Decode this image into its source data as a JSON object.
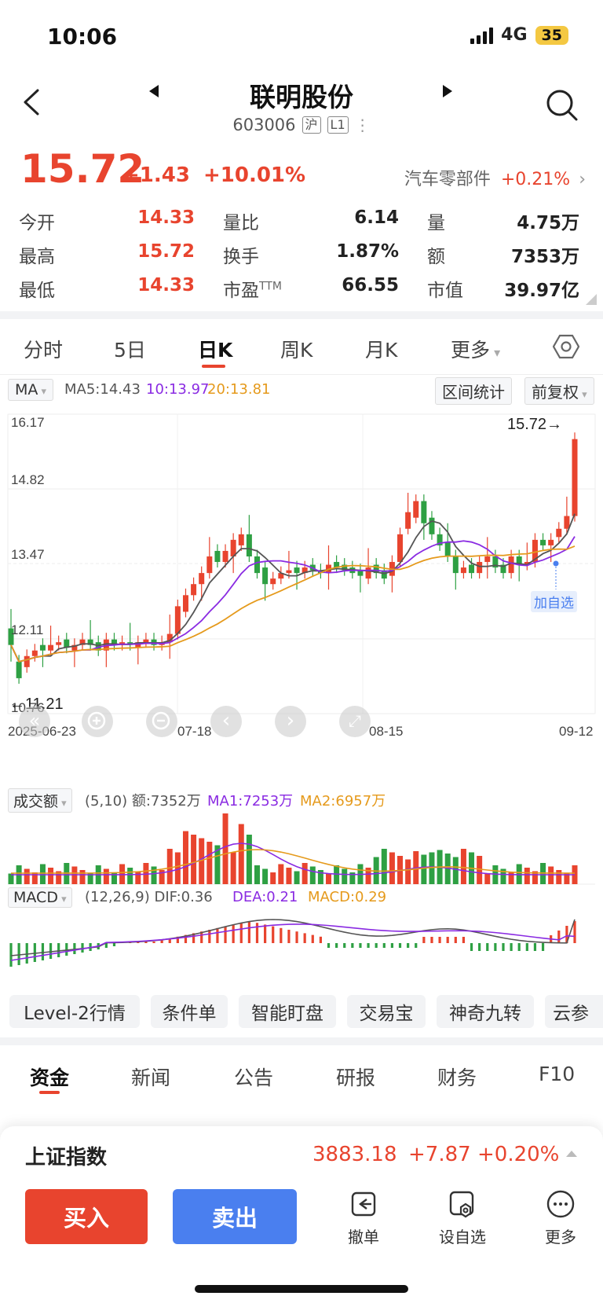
{
  "status": {
    "time": "10:06",
    "network": "4G",
    "battery": "35"
  },
  "header": {
    "title": "联明股份",
    "code": "603006",
    "market_tag": "沪",
    "level_tag": "L1"
  },
  "quote": {
    "price": "15.72",
    "change": "+1.43",
    "change_pct": "+10.01%",
    "sector_name": "汽车零部件",
    "sector_change": "+0.21%",
    "stats": [
      [
        {
          "label": "今开",
          "value": "14.33"
        },
        {
          "label": "量比",
          "value": "6.14"
        },
        {
          "label": "量",
          "value": "4.75万"
        }
      ],
      [
        {
          "label": "最高",
          "value": "15.72"
        },
        {
          "label": "换手",
          "value": "1.87%"
        },
        {
          "label": "额",
          "value": "7353万"
        }
      ],
      [
        {
          "label": "最低",
          "value": "14.33"
        },
        {
          "label": "市盈",
          "sup": "TTM",
          "value": "66.55"
        },
        {
          "label": "市值",
          "value": "39.97亿"
        }
      ]
    ]
  },
  "ktabs": [
    "分时",
    "5日",
    "日K",
    "周K",
    "月K",
    "更多"
  ],
  "chart": {
    "ma_label": "MA",
    "ma5": "MA5:14.43",
    "ma10": "10:13.97",
    "ma20": "20:13.81",
    "range_button": "区间统计",
    "adjust_button": "前复权",
    "y_ticks": [
      "16.17",
      "14.82",
      "13.47",
      "12.11",
      "10.76"
    ],
    "high_label": "15.72→",
    "low_label": "←11.21",
    "add_watch": "加自选",
    "x_ticks": [
      "2025-06-23",
      "07-18",
      "08-15",
      "09-12"
    ],
    "vol_label": "成交额",
    "vol_params": "(5,10)",
    "vol_amount": "额:7352万",
    "vol_ma1": "MA1:7253万",
    "vol_ma2": "MA2:6957万",
    "macd_label": "MACD",
    "macd_params": "(12,26,9)",
    "dif": "DIF:0.36",
    "dea": "DEA:0.21",
    "macd": "MACD:0.29"
  },
  "colors": {
    "up": "#e8442e",
    "down": "#2ea043",
    "ma5": "#555555",
    "ma10": "#8a2be2",
    "ma20": "#e59a1c",
    "buy": "#e8442e",
    "sell": "#4a7fef"
  },
  "tools": [
    "Level-2行情",
    "条件单",
    "智能盯盘",
    "交易宝",
    "神奇九转",
    "云参"
  ],
  "btabs": [
    "资金",
    "新闻",
    "公告",
    "研报",
    "财务",
    "F10"
  ],
  "index": {
    "name": "上证指数",
    "value": "3883.18",
    "change": "+7.87",
    "change_pct": "+0.20%"
  },
  "actions": {
    "buy": "买入",
    "sell": "卖出",
    "revoke": "撤单",
    "watch": "设自选",
    "more": "更多"
  }
}
